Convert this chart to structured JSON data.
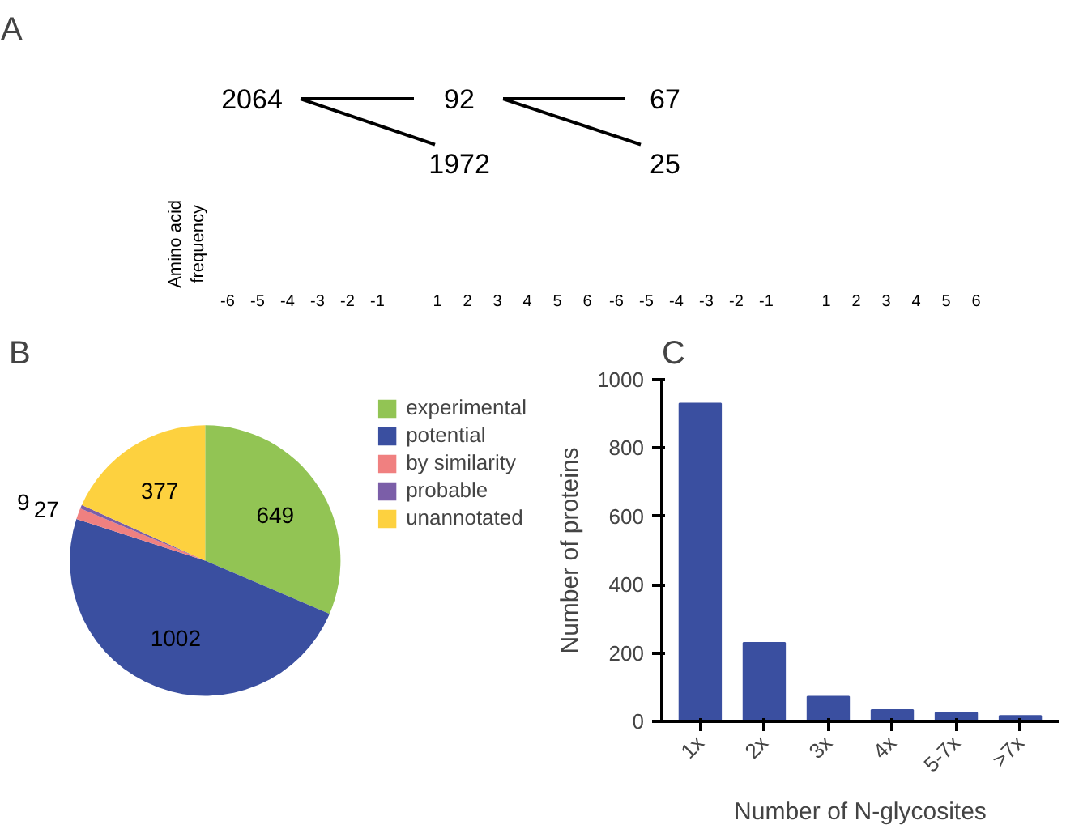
{
  "chart_data": [
    {
      "type": "other",
      "title": "A",
      "annotations": [
        "2064",
        "92",
        "67",
        "1972",
        "25"
      ],
      "ylabel": "Amino acid frequency",
      "categories": [
        "-6",
        "-5",
        "-4",
        "-3",
        "-2",
        "-1",
        null,
        "1",
        "2",
        "3",
        "4",
        "5",
        "6",
        "-6",
        "-5",
        "-4",
        "-3",
        "-2",
        "-1",
        null,
        "1",
        "2",
        "3",
        "4",
        "5",
        "6"
      ]
    },
    {
      "type": "pie",
      "title": "B",
      "categories": [
        "experimental",
        "potential",
        "by similarity",
        "probable",
        "unannotated"
      ],
      "values": [
        649,
        1002,
        27,
        9,
        377
      ],
      "colors": [
        "#92c454",
        "#3a4fa0",
        "#f08080",
        "#7b5ea8",
        "#fdd13f"
      ],
      "data_labels": true,
      "legend": "right"
    },
    {
      "type": "bar",
      "title": "C",
      "categories": [
        "1x",
        "2x",
        "3x",
        "4x",
        "5-7x",
        ">7x"
      ],
      "values": [
        930,
        230,
        72,
        33,
        25,
        16
      ],
      "color": "#3a4fa0",
      "xlabel": "Number of N-glycosites",
      "ylabel": "Number of proteins",
      "ylim": [
        0,
        1000
      ],
      "yticks": [
        0,
        200,
        400,
        600,
        800,
        1000
      ],
      "grid": false
    }
  ]
}
